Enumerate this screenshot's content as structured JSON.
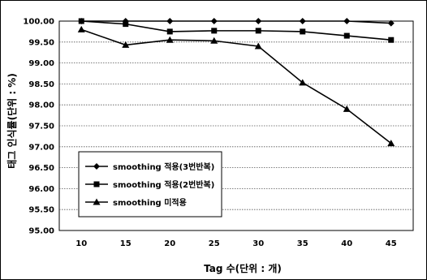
{
  "chart_data": {
    "type": "line",
    "xlabel": "Tag 수(단위 : 개)",
    "ylabel": "태그 인식률(단위 : %)",
    "x": [
      10,
      15,
      20,
      25,
      30,
      35,
      40,
      45
    ],
    "y_ticks": [
      "100.00",
      "99.50",
      "99.00",
      "98.50",
      "98.00",
      "97.50",
      "97.00",
      "96.50",
      "96.00",
      "95.50",
      "95.00"
    ],
    "ylim": [
      95.0,
      100.0
    ],
    "grid": "horizontal dotted",
    "legend_position": "bottom-left",
    "series": [
      {
        "name": "smoothing 적용(3번반복)",
        "marker": "diamond",
        "values": [
          100.0,
          100.0,
          100.0,
          100.0,
          100.0,
          100.0,
          100.0,
          99.95
        ]
      },
      {
        "name": "smoothing 적용(2번반복)",
        "marker": "square",
        "values": [
          100.0,
          99.93,
          99.75,
          99.77,
          99.77,
          99.75,
          99.65,
          99.55
        ]
      },
      {
        "name": "smoothing 미적용",
        "marker": "triangle",
        "values": [
          99.8,
          99.43,
          99.55,
          99.53,
          99.4,
          98.53,
          97.9,
          97.08
        ]
      }
    ],
    "colors": {
      "line": "#000000",
      "grid": "#555555",
      "frame": "#000000"
    }
  }
}
